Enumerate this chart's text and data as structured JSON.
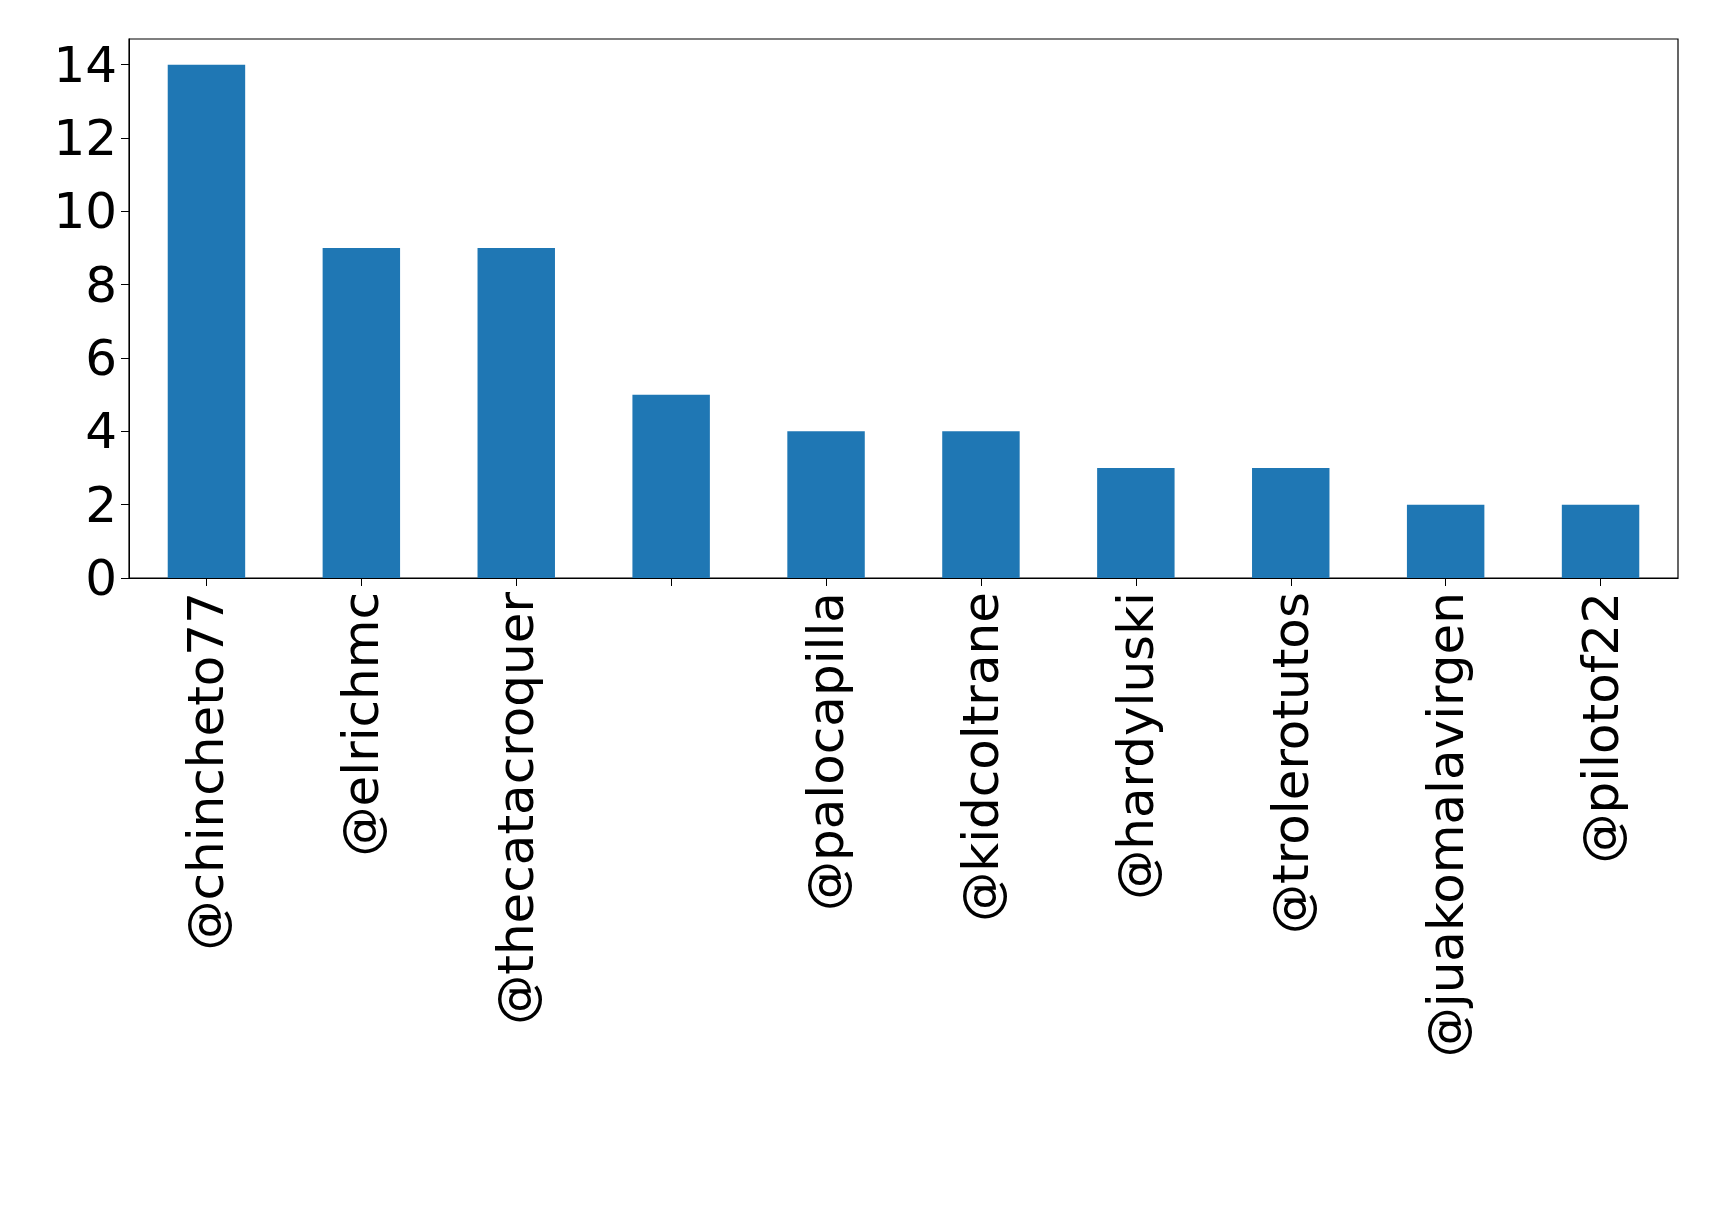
{
  "chart_data": {
    "type": "bar",
    "categories": [
      "@chincheto77",
      "@elrichmc",
      "@thecatacroquer",
      null,
      "@palocapilla",
      "@kidcoltrane",
      "@hardyluski",
      "@trolerotutos",
      "@juakomalavirgen",
      "@pilotof22"
    ],
    "values": [
      14,
      9,
      9,
      5,
      4,
      4,
      3,
      3,
      2,
      2
    ],
    "color": "#1f77b4",
    "ylim": [
      0,
      14.7
    ],
    "yticks": [
      0,
      2,
      4,
      6,
      8,
      10,
      12,
      14
    ]
  }
}
